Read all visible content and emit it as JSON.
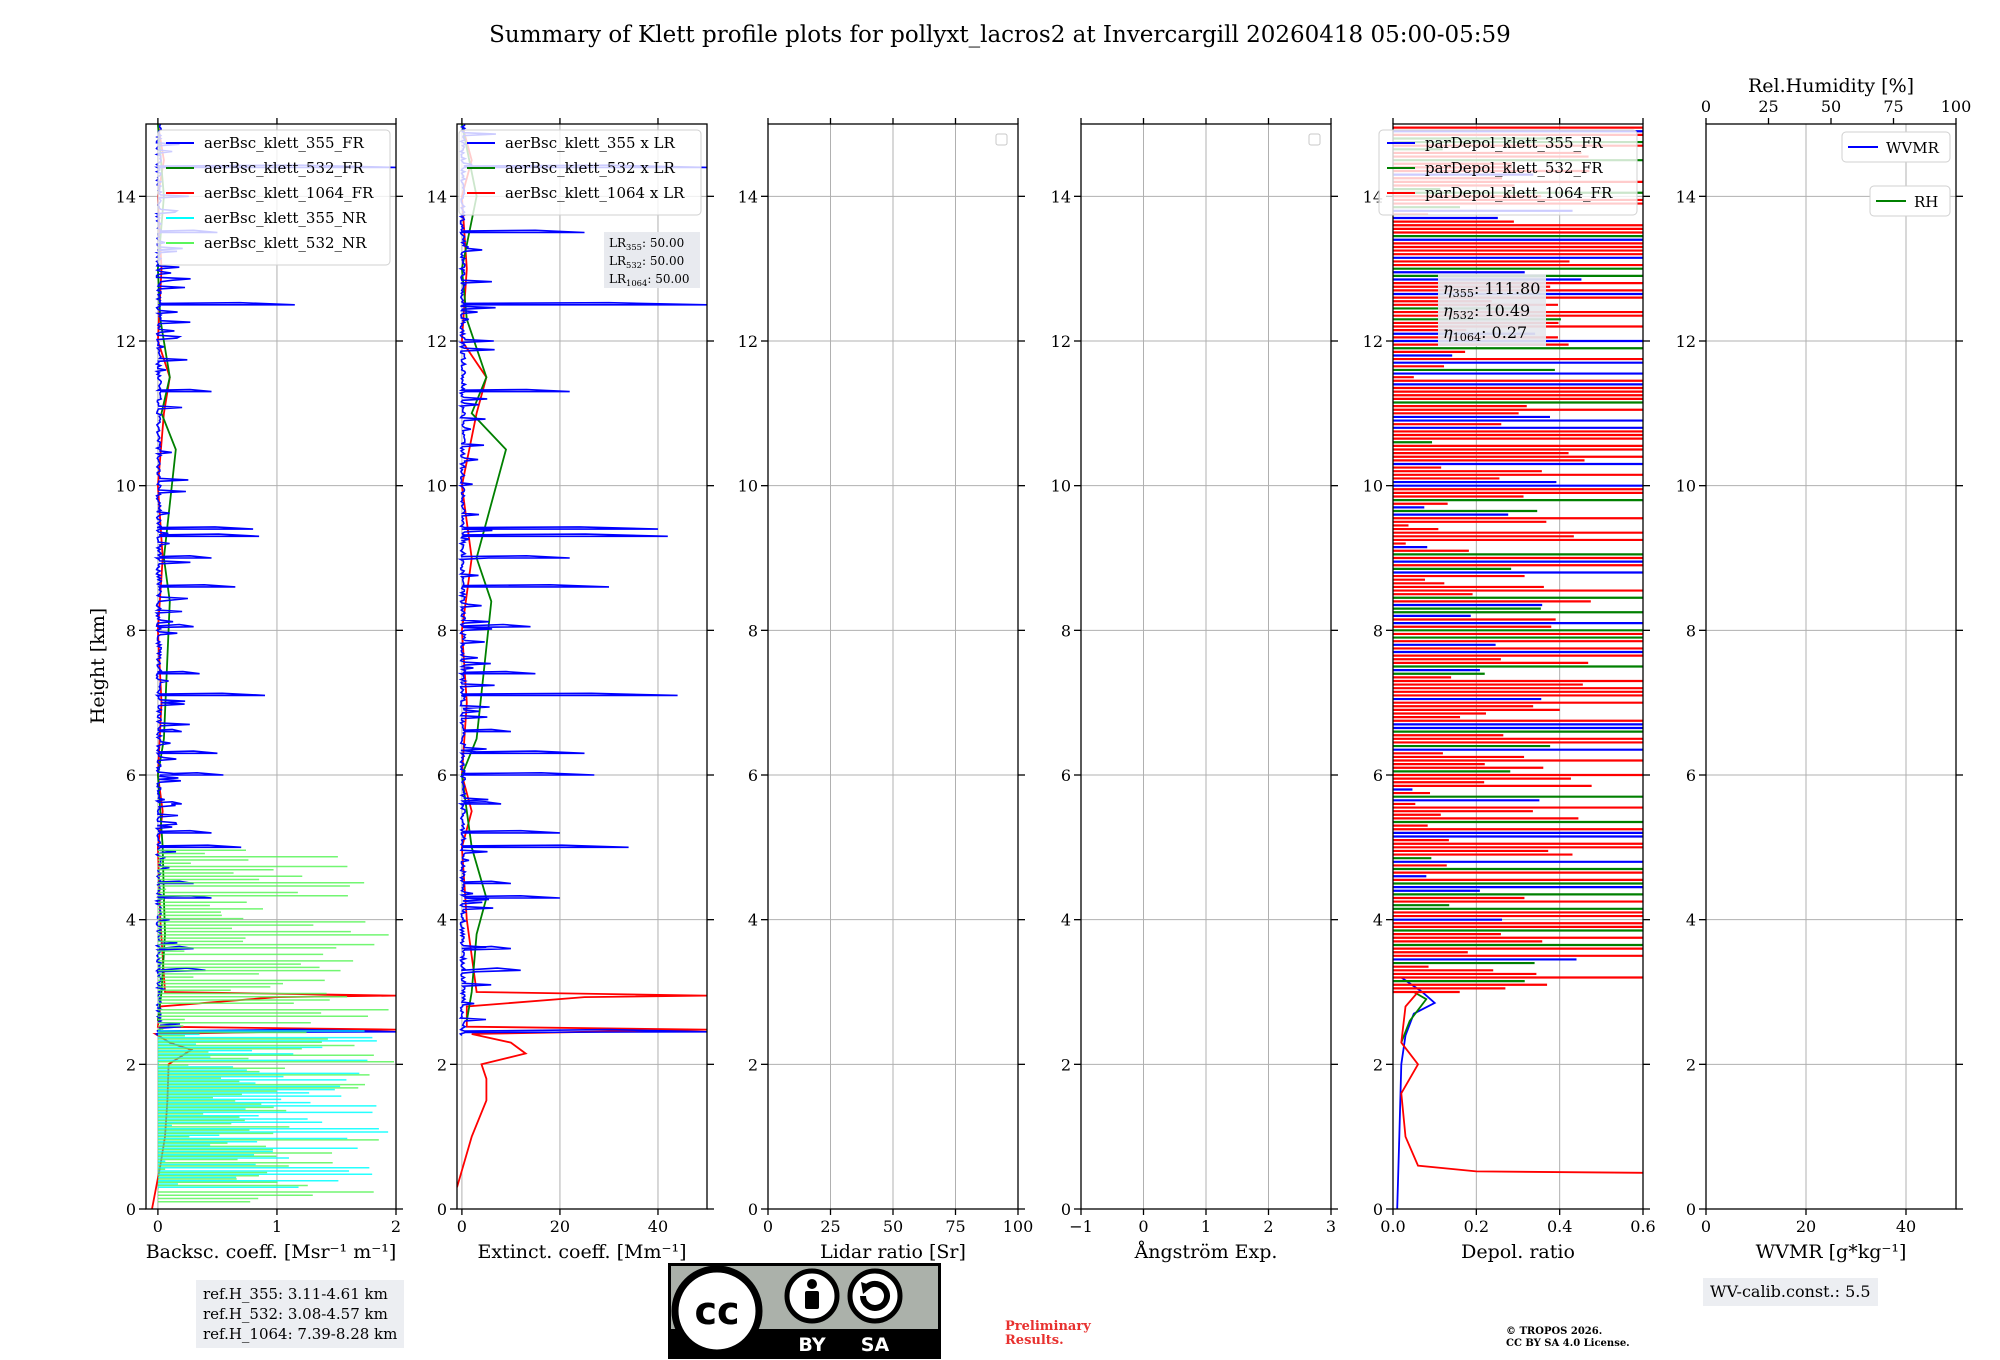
{
  "figure": {
    "title": "Summary of Klett profile plots for pollyxt_lacros2 at Invercargill 20260418 05:00-05:59",
    "ylabel": "Height [km]",
    "ref_heights": [
      "ref.H_355: 3.11-4.61 km",
      "ref.H_532: 3.08-4.57 km",
      "ref.H_1064: 7.39-8.28 km"
    ],
    "wv_calib": "WV-calib.const.: 5.5",
    "preliminary": [
      "Preliminary",
      "Results."
    ],
    "copyright": [
      "© TROPOS 2026.",
      "CC BY SA 4.0 License."
    ],
    "license_badge": {
      "by": "BY",
      "sa": "SA"
    }
  },
  "colors": {
    "c355": "#0000ff",
    "c532": "#008000",
    "c1064": "#ff0000",
    "c355nr": "#00ffff",
    "c532nr": "#5af55a",
    "grid": "#b0b0b0"
  },
  "chart_data": [
    {
      "type": "line",
      "id": "bsc",
      "xlabel": "Backsc. coeff. [Msr⁻¹ m⁻¹]",
      "xlim": [
        -0.1,
        2
      ],
      "xticks": [
        0,
        1,
        2
      ],
      "xticklabels": [
        "0",
        "1",
        "2"
      ],
      "ylim": [
        0,
        15
      ],
      "yticks": [
        0,
        2,
        4,
        6,
        8,
        10,
        12,
        14
      ],
      "legend": [
        "aerBsc_klett_355_FR",
        "aerBsc_klett_532_FR",
        "aerBsc_klett_1064_FR",
        "aerBsc_klett_355_NR",
        "aerBsc_klett_532_NR"
      ],
      "legend_loc": "upper right",
      "series": [
        {
          "name": "aerBsc_klett_1064_FR",
          "color": "c1064",
          "points": [
            [
              -0.05,
              0
            ],
            [
              0.02,
              0.6
            ],
            [
              0.06,
              1.0
            ],
            [
              0.08,
              1.5
            ],
            [
              0.09,
              2.0
            ],
            [
              0.28,
              2.2
            ],
            [
              0.1,
              2.3
            ],
            [
              -0.02,
              2.42
            ],
            [
              2.0,
              2.48
            ],
            [
              0.0,
              2.52
            ],
            [
              0.02,
              2.8
            ],
            [
              1.0,
              2.93
            ],
            [
              2.0,
              2.95
            ],
            [
              0.06,
              3.0
            ],
            [
              0.02,
              4.0
            ],
            [
              0.0,
              5.0
            ],
            [
              0.04,
              5.5
            ],
            [
              0.0,
              6.0
            ],
            [
              0.03,
              7.0
            ],
            [
              0.0,
              8.0
            ],
            [
              0.04,
              9.0
            ],
            [
              0.0,
              10.0
            ],
            [
              0.05,
              11.0
            ],
            [
              0.1,
              11.5
            ],
            [
              0.0,
              12.0
            ],
            [
              0.03,
              13.0
            ],
            [
              0.0,
              14.0
            ],
            [
              0.05,
              14.5
            ],
            [
              0.0,
              15.0
            ]
          ]
        },
        {
          "name": "aerBsc_klett_532_FR",
          "color": "c532",
          "points": [
            [
              0,
              2.6
            ],
            [
              0.03,
              3.0
            ],
            [
              0.06,
              3.8
            ],
            [
              0.05,
              4.3
            ],
            [
              0.04,
              5.0
            ],
            [
              0.0,
              6.0
            ],
            [
              0.05,
              6.5
            ],
            [
              0.1,
              8.4
            ],
            [
              0.05,
              9.0
            ],
            [
              0.15,
              10.5
            ],
            [
              0.03,
              11.0
            ],
            [
              0.1,
              11.5
            ],
            [
              0.02,
              12.3
            ],
            [
              0.0,
              13.0
            ],
            [
              0.05,
              14.0
            ],
            [
              0.0,
              15.0
            ]
          ]
        },
        {
          "name": "aerBsc_klett_355_FR",
          "color": "c355",
          "spikes": [
            [
              2.45,
              2.0
            ],
            [
              3.3,
              0.4
            ],
            [
              3.6,
              0.3
            ],
            [
              4.3,
              0.45
            ],
            [
              4.5,
              0.3
            ],
            [
              5.0,
              0.7
            ],
            [
              5.2,
              0.45
            ],
            [
              5.6,
              0.2
            ],
            [
              6.0,
              0.55
            ],
            [
              6.3,
              0.5
            ],
            [
              6.6,
              0.2
            ],
            [
              7.1,
              0.9
            ],
            [
              7.4,
              0.35
            ],
            [
              8.05,
              0.3
            ],
            [
              8.6,
              0.65
            ],
            [
              9.0,
              0.45
            ],
            [
              9.3,
              0.85
            ],
            [
              9.4,
              0.8
            ],
            [
              11.3,
              0.45
            ],
            [
              12.5,
              1.15
            ],
            [
              13.5,
              0.5
            ],
            [
              14.4,
              2.0
            ]
          ]
        },
        {
          "name": "aerBsc_klett_355_NR",
          "color": "c355nr",
          "range": [
            0.3,
            2.5
          ],
          "max": 2.0
        },
        {
          "name": "aerBsc_klett_532_NR",
          "color": "c532nr",
          "range": [
            0.1,
            5.0
          ],
          "max": 2.0
        }
      ]
    },
    {
      "type": "line",
      "id": "ext",
      "xlabel": "Extinct. coeff. [Mm⁻¹]",
      "xlim": [
        -1,
        50
      ],
      "xticks": [
        0,
        20,
        40
      ],
      "xticklabels": [
        "0",
        "20",
        "40"
      ],
      "ylim": [
        0,
        15
      ],
      "yticks": [
        0,
        2,
        4,
        6,
        8,
        10,
        12,
        14
      ],
      "legend": [
        "aerBsc_klett_355 x LR",
        "aerBsc_klett_532 x LR",
        "aerBsc_klett_1064 x LR"
      ],
      "legend_loc": "upper right",
      "annotation": {
        "label": "LR",
        "subs": [
          "355",
          "532",
          "1064"
        ],
        "values": [
          "50.00",
          "50.00",
          "50.00"
        ]
      },
      "series": [
        {
          "name": "aerBsc_klett_1064 x LR",
          "color": "c1064",
          "points": [
            [
              -1,
              0.3
            ],
            [
              2,
              1.0
            ],
            [
              5,
              1.5
            ],
            [
              5,
              1.8
            ],
            [
              4,
              2.0
            ],
            [
              13,
              2.15
            ],
            [
              10,
              2.3
            ],
            [
              2,
              2.42
            ],
            [
              50,
              2.48
            ],
            [
              1,
              2.52
            ],
            [
              1,
              2.8
            ],
            [
              25,
              2.93
            ],
            [
              50,
              2.95
            ],
            [
              3,
              3.0
            ],
            [
              1,
              4.0
            ],
            [
              0,
              5.0
            ],
            [
              2,
              5.5
            ],
            [
              0,
              6.0
            ],
            [
              1,
              7.0
            ],
            [
              0,
              8.0
            ],
            [
              2,
              9.0
            ],
            [
              0,
              10.0
            ],
            [
              3,
              11.0
            ],
            [
              5,
              11.5
            ],
            [
              0,
              12.0
            ],
            [
              1,
              13.0
            ],
            [
              0,
              14.0
            ],
            [
              2,
              14.5
            ],
            [
              0,
              15.0
            ]
          ]
        },
        {
          "name": "aerBsc_klett_532 x LR",
          "color": "c532",
          "points": [
            [
              1,
              2.6
            ],
            [
              2,
              3.0
            ],
            [
              3,
              3.8
            ],
            [
              5,
              4.3
            ],
            [
              2,
              5.0
            ],
            [
              0,
              6.0
            ],
            [
              3,
              6.5
            ],
            [
              6,
              8.4
            ],
            [
              3,
              9.0
            ],
            [
              9,
              10.5
            ],
            [
              2,
              11.0
            ],
            [
              5,
              11.5
            ],
            [
              1,
              12.3
            ],
            [
              0,
              13.0
            ],
            [
              3,
              14.0
            ],
            [
              0,
              15.0
            ]
          ]
        },
        {
          "name": "aerBsc_klett_355 x LR",
          "color": "c355",
          "spikes": [
            [
              2.45,
              50
            ],
            [
              3.3,
              12
            ],
            [
              3.6,
              10
            ],
            [
              4.3,
              20
            ],
            [
              4.5,
              10
            ],
            [
              5.0,
              34
            ],
            [
              5.2,
              20
            ],
            [
              5.6,
              8
            ],
            [
              6.0,
              27
            ],
            [
              6.3,
              25
            ],
            [
              6.6,
              10
            ],
            [
              7.1,
              44
            ],
            [
              7.4,
              15
            ],
            [
              8.05,
              14
            ],
            [
              8.6,
              30
            ],
            [
              9.0,
              22
            ],
            [
              9.3,
              42
            ],
            [
              9.4,
              40
            ],
            [
              11.3,
              22
            ],
            [
              12.5,
              50
            ],
            [
              13.5,
              25
            ],
            [
              14.4,
              50
            ]
          ]
        }
      ]
    },
    {
      "type": "line",
      "id": "lr",
      "xlabel": "Lidar ratio [Sr]",
      "xlim": [
        0,
        100
      ],
      "xticks": [
        0,
        25,
        50,
        75,
        100
      ],
      "xticklabels": [
        "0",
        "25",
        "50",
        "75",
        "100"
      ],
      "ylim": [
        0,
        15
      ],
      "yticks": [
        0,
        2,
        4,
        6,
        8,
        10,
        12,
        14
      ],
      "legend": [],
      "series": []
    },
    {
      "type": "line",
      "id": "ang",
      "xlabel": "Ångström Exp.",
      "xlim": [
        -1,
        3
      ],
      "xticks": [
        -1,
        0,
        1,
        2,
        3
      ],
      "xticklabels": [
        "−1",
        "0",
        "1",
        "2",
        "3"
      ],
      "ylim": [
        0,
        15
      ],
      "yticks": [
        0,
        2,
        4,
        6,
        8,
        10,
        12,
        14
      ],
      "legend": [],
      "series": []
    },
    {
      "type": "line",
      "id": "dep",
      "xlabel": "Depol. ratio",
      "xlim": [
        0,
        0.6
      ],
      "xticks": [
        0,
        0.2,
        0.4,
        0.6
      ],
      "xticklabels": [
        "0.0",
        "0.2",
        "0.4",
        "0.6"
      ],
      "ylim": [
        0,
        15
      ],
      "yticks": [
        0,
        2,
        4,
        6,
        8,
        10,
        12,
        14
      ],
      "legend": [
        "parDepol_klett_355_FR",
        "parDepol_klett_532_FR",
        "parDepol_klett_1064_FR"
      ],
      "legend_loc": "upper right",
      "annotation": {
        "label": "η",
        "subs": [
          "355",
          "532",
          "1064"
        ],
        "values": [
          "111.80",
          "10.49",
          "0.27"
        ]
      },
      "series": [
        {
          "name": "parDepol_klett_355_FR",
          "color": "c355",
          "points": [
            [
              0.01,
              0
            ],
            [
              0.015,
              1.0
            ],
            [
              0.02,
              2.0
            ],
            [
              0.03,
              2.4
            ],
            [
              0.05,
              2.7
            ],
            [
              0.1,
              2.85
            ],
            [
              0.07,
              3.0
            ],
            [
              0.02,
              3.2
            ]
          ]
        },
        {
          "name": "parDepol_klett_532_FR",
          "color": "c532",
          "points": [
            [
              0.02,
              2.3
            ],
            [
              0.04,
              2.6
            ],
            [
              0.08,
              2.9
            ],
            [
              0.05,
              3.0
            ]
          ]
        },
        {
          "name": "parDepol_klett_1064_FR",
          "color": "c1064",
          "points": [
            [
              0.6,
              0.5
            ],
            [
              0.2,
              0.52
            ],
            [
              0.06,
              0.6
            ],
            [
              0.03,
              1.0
            ],
            [
              0.02,
              1.6
            ],
            [
              0.06,
              2.0
            ],
            [
              0.02,
              2.3
            ],
            [
              0.03,
              2.8
            ],
            [
              0.06,
              3.0
            ]
          ]
        },
        {
          "name": "noise",
          "range": [
            3.0,
            15.0
          ]
        }
      ]
    },
    {
      "type": "line",
      "id": "wv",
      "xlabel": "WVMR [g*kg⁻¹]",
      "xlim": [
        0,
        50
      ],
      "xticks": [
        0,
        20,
        40
      ],
      "xticklabels": [
        "0",
        "20",
        "40"
      ],
      "ylim": [
        0,
        15
      ],
      "yticks": [
        0,
        2,
        4,
        6,
        8,
        10,
        12,
        14
      ],
      "top_axis": {
        "label": "Rel.Humidity [%]",
        "xlim": [
          0,
          100
        ],
        "xticks": [
          0,
          25,
          50,
          75,
          100
        ],
        "xticklabels": [
          "0",
          "25",
          "50",
          "75",
          "100"
        ]
      },
      "legend": [
        "WVMR",
        "RH"
      ],
      "series": []
    }
  ]
}
